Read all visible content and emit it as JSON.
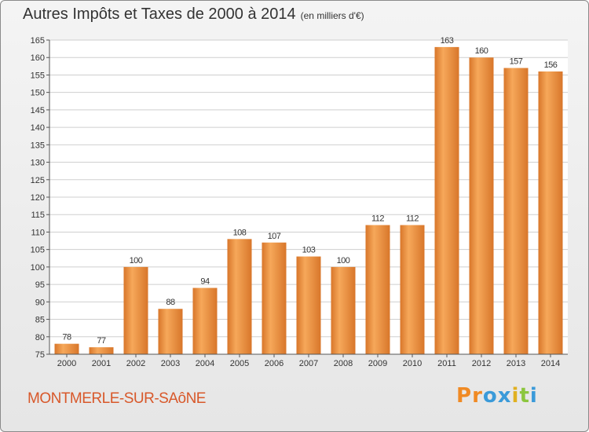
{
  "title": "Autres Impôts et Taxes de 2000 à 2014",
  "unit": "(en milliers d'€)",
  "commune": "MONTMERLE-SUR-SAôNE",
  "logo": {
    "text": "Proxiti",
    "letter_colors": [
      "#f08a24",
      "#f08a24",
      "#3a9ad9",
      "#3a9ad9",
      "#e0b020",
      "#8cc63e",
      "#3a9ad9"
    ]
  },
  "colors": {
    "bar_light": "#f6a85a",
    "bar_dark": "#d8762a",
    "axis": "#555555",
    "grid": "#cfcfcf",
    "text": "#333333",
    "commune": "#d8582a"
  },
  "chart_data": {
    "type": "bar",
    "title": "Autres Impôts et Taxes de 2000 à 2014",
    "categories": [
      "2000",
      "2001",
      "2002",
      "2003",
      "2004",
      "2005",
      "2006",
      "2007",
      "2008",
      "2009",
      "2010",
      "2011",
      "2012",
      "2013",
      "2014"
    ],
    "values": [
      78,
      77,
      100,
      88,
      94,
      108,
      107,
      103,
      100,
      112,
      112,
      163,
      160,
      157,
      156
    ],
    "ylim": [
      75,
      165
    ],
    "yticks": [
      75,
      80,
      85,
      90,
      95,
      100,
      105,
      110,
      115,
      120,
      125,
      130,
      135,
      140,
      145,
      150,
      155,
      160,
      165
    ],
    "grid": true,
    "data_labels": true
  }
}
